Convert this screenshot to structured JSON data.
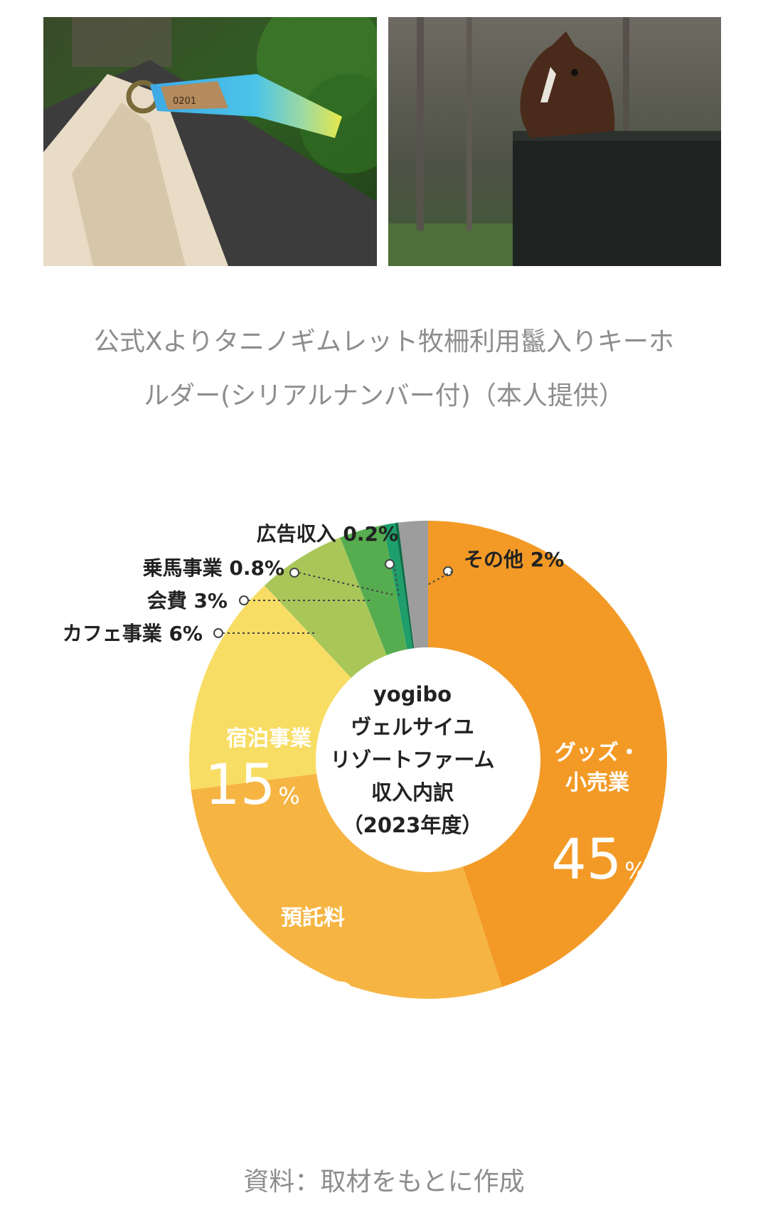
{
  "photos": [
    {
      "icon": "keyholder-photo",
      "tag_text": "0201"
    },
    {
      "icon": "horse-photo"
    }
  ],
  "caption": {
    "line1": "公式Xよりタニノギムレット牧柵利用鬣入りキーホ",
    "line2": "ルダー(シリアルナンバー付)（本人提供）"
  },
  "chart_data": {
    "type": "pie",
    "center_label": [
      "yogibo",
      "ヴェルサイユ",
      "リゾートファーム",
      "収入内訳",
      "（2023年度）"
    ],
    "slices": [
      {
        "name": "グッズ・小売業",
        "name_lines": [
          "グッズ・",
          "小売業"
        ],
        "value": 45,
        "color": "#f39a26"
      },
      {
        "name": "預託料",
        "name_lines": [
          "預託料"
        ],
        "value": 28,
        "color": "#f6b543"
      },
      {
        "name": "宿泊事業",
        "name_lines": [
          "宿泊事業"
        ],
        "value": 15,
        "color": "#f8dd64"
      },
      {
        "name": "カフェ事業",
        "value": 6,
        "color": "#a9c759",
        "outside_label": "カフェ事業 6%"
      },
      {
        "name": "会費",
        "value": 3,
        "color": "#56ad50",
        "outside_label": "会費 3%"
      },
      {
        "name": "乗馬事業",
        "value": 0.8,
        "color": "#1e9e6a",
        "outside_label": "乗馬事業 0.8%"
      },
      {
        "name": "広告収入",
        "value": 0.2,
        "color": "#0d6e47",
        "outside_label": "広告収入 0.2%"
      },
      {
        "name": "その他",
        "value": 2,
        "color": "#9d9d9d",
        "outside_label": "その他 2%"
      }
    ]
  },
  "source": "資料：取材をもとに作成"
}
